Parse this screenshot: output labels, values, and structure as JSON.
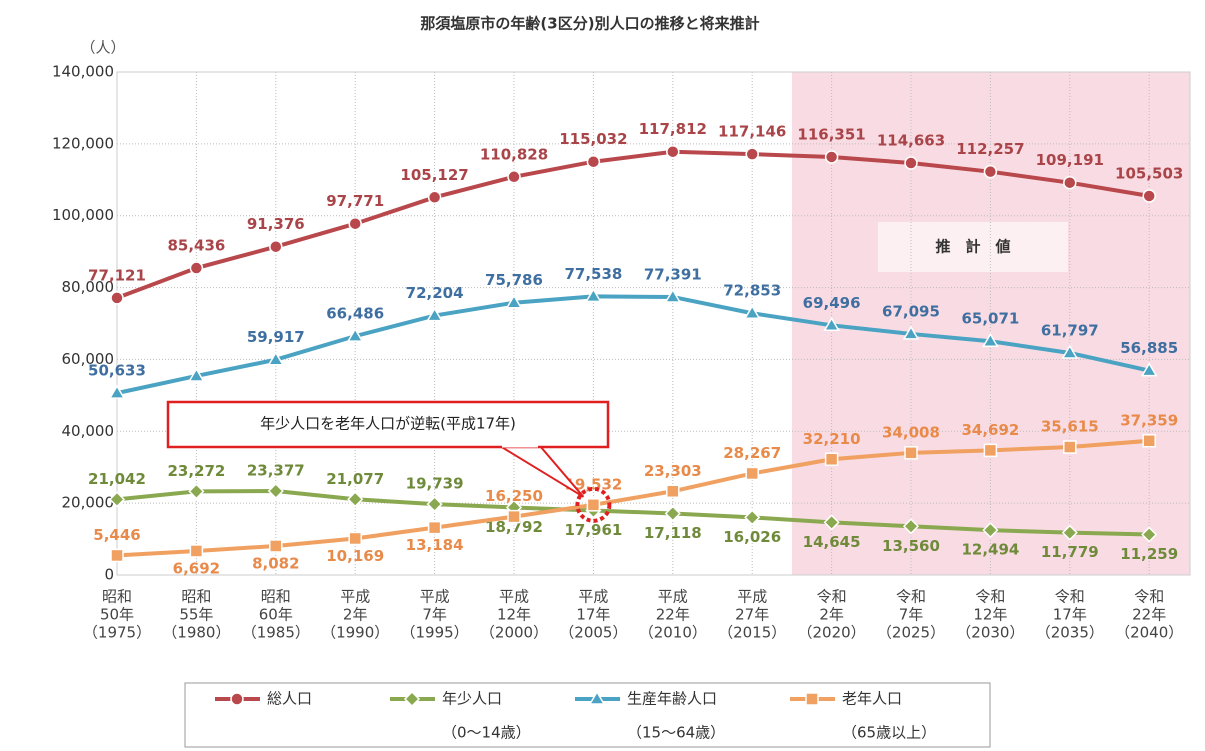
{
  "chart_data": {
    "type": "line",
    "title": "那須塩原市の年齢(3区分)別人口の推移と将来推計",
    "ylabel": "（人）",
    "categories": [
      [
        "昭和",
        "50年",
        "（1975）"
      ],
      [
        "昭和",
        "55年",
        "（1980）"
      ],
      [
        "昭和",
        "60年",
        "（1985）"
      ],
      [
        "平成",
        "2年",
        "（1990）"
      ],
      [
        "平成",
        "7年",
        "（1995）"
      ],
      [
        "平成",
        "12年",
        "（2000）"
      ],
      [
        "平成",
        "17年",
        "（2005）"
      ],
      [
        "平成",
        "22年",
        "（2010）"
      ],
      [
        "平成",
        "27年",
        "（2015）"
      ],
      [
        "令和",
        "2年",
        "（2020）"
      ],
      [
        "令和",
        "7年",
        "（2025）"
      ],
      [
        "令和",
        "12年",
        "（2030）"
      ],
      [
        "令和",
        "17年",
        "（2035）"
      ],
      [
        "令和",
        "22年",
        "（2040）"
      ]
    ],
    "ylim": [
      0,
      140000
    ],
    "yticks": [
      0,
      {
        "value": 20000,
        "label": "20,000"
      },
      {
        "value": 40000,
        "label": "40,000"
      },
      {
        "value": 60000,
        "label": "60,000"
      },
      {
        "value": 80000,
        "label": "80,000"
      },
      {
        "value": 100000,
        "label": "100,000"
      },
      {
        "value": 120000,
        "label": "120,000"
      },
      {
        "value": 140000,
        "label": "140,000"
      }
    ],
    "grid": true,
    "forecast_label": "推　計　値",
    "forecast_start_index": 9,
    "annotation": "年少人口を老年人口が逆転(平成17年)",
    "series": [
      {
        "name": "総人口",
        "color": "#b9484c",
        "marker": "circle",
        "values": [
          77121,
          85436,
          91376,
          97771,
          105127,
          110828,
          115032,
          117812,
          117146,
          116351,
          114663,
          112257,
          109191,
          105503
        ],
        "value_labels": [
          "77,121",
          "85,436",
          "91,376",
          "97,771",
          "105,127",
          "110,828",
          "115,032",
          "117,812",
          "117,146",
          "116,351",
          "114,663",
          "112,257",
          "109,191",
          "105,503"
        ]
      },
      {
        "name": "年少人口",
        "age_range": "（0〜14歳）",
        "color": "#8aa84f",
        "marker": "diamond",
        "values": [
          21042,
          23272,
          23377,
          21077,
          19739,
          18792,
          17961,
          17118,
          16026,
          14645,
          13560,
          12494,
          11779,
          11259
        ],
        "value_labels": [
          "21,042",
          "23,272",
          "23,377",
          "21,077",
          "19,739",
          "18,792",
          "17,961",
          "17,118",
          "16,026",
          "14,645",
          "13,560",
          "12,494",
          "11,779",
          "11,259"
        ]
      },
      {
        "name": "生産年齢人口",
        "age_range": "（15〜64歳）",
        "color": "#4ba3c3",
        "marker": "triangle",
        "values": [
          50633,
          55400,
          59917,
          66486,
          72204,
          75786,
          77538,
          77391,
          72853,
          69496,
          67095,
          65071,
          61797,
          56885
        ],
        "value_labels": [
          "50,633",
          null,
          "59,917",
          "66,486",
          "72,204",
          "75,786",
          "77,538",
          "77,391",
          "72,853",
          "69,496",
          "67,095",
          "65,071",
          "61,797",
          "56,885"
        ]
      },
      {
        "name": "老年人口",
        "age_range": "（65歳以上）",
        "color": "#f0a060",
        "marker": "square",
        "values": [
          5446,
          6692,
          8082,
          10169,
          13184,
          16250,
          19532,
          23303,
          28267,
          32210,
          34008,
          34692,
          35615,
          37359
        ],
        "value_labels": [
          "5,446",
          "6,692",
          "8,082",
          "10,169",
          "13,184",
          "16,250",
          "19,532",
          "23,303",
          "28,267",
          "32,210",
          "34,008",
          "34,692",
          "35,615",
          "37,359"
        ]
      }
    ]
  }
}
